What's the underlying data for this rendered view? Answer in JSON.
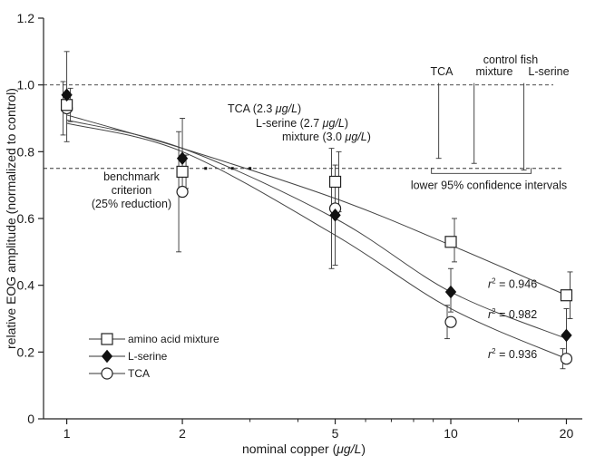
{
  "chart_data": {
    "type": "scatter",
    "xlabel_main": "nominal copper (",
    "xlabel_unit": "μg/L",
    "xlabel_close": ")",
    "ylabel": "relative EOG amplitude (normalized to control)",
    "x_scale": "log",
    "xlim": [
      0.87,
      22
    ],
    "ylim": [
      0,
      1.2
    ],
    "x_ticks": [
      1,
      2,
      5,
      10,
      20
    ],
    "x_tick_labels": [
      "1",
      "2",
      "5",
      "10",
      "20"
    ],
    "y_ticks": [
      0,
      0.2,
      0.4,
      0.6,
      0.8,
      1.0,
      1.2
    ],
    "y_tick_labels": [
      "0",
      "0.2",
      "0.4",
      "0.6",
      "0.8",
      "1.0",
      "1.2"
    ],
    "grid": false,
    "legend_position": "bottom-left",
    "series": [
      {
        "name": "amino acid mixture",
        "marker": "open-square",
        "x": [
          1,
          2,
          5,
          10,
          20
        ],
        "y": [
          0.94,
          0.74,
          0.71,
          0.53,
          0.37
        ],
        "err_low": [
          0.89,
          0.69,
          0.62,
          0.47,
          0.3
        ],
        "err_high": [
          0.99,
          0.79,
          0.8,
          0.6,
          0.44
        ],
        "fit_y": [
          0.91,
          0.81,
          0.66,
          0.52,
          0.37
        ],
        "r2_label": "r",
        "r2_value": " = 0.946"
      },
      {
        "name": "L-serine",
        "marker": "filled-diamond",
        "x": [
          1,
          2,
          5,
          10,
          20
        ],
        "y": [
          0.97,
          0.78,
          0.61,
          0.38,
          0.25
        ],
        "err_low": [
          0.83,
          0.68,
          0.46,
          0.32,
          0.19
        ],
        "err_high": [
          1.1,
          0.9,
          0.76,
          0.45,
          0.33
        ],
        "fit_y": [
          0.895,
          0.81,
          0.6,
          0.38,
          0.24
        ],
        "r2_label": "r",
        "r2_value": " = 0.982"
      },
      {
        "name": "TCA",
        "marker": "open-circle",
        "x": [
          1,
          2,
          5,
          10,
          20
        ],
        "y": [
          0.93,
          0.68,
          0.63,
          0.29,
          0.18
        ],
        "err_low": [
          0.85,
          0.5,
          0.45,
          0.24,
          0.15
        ],
        "err_high": [
          1.01,
          0.86,
          0.81,
          0.34,
          0.21
        ],
        "fit_y": [
          0.885,
          0.8,
          0.55,
          0.33,
          0.18
        ],
        "r2_label": "r",
        "r2_value": " = 0.936"
      }
    ],
    "control_level": 1.0,
    "benchmark_level": 0.75,
    "benchmark_text": [
      "benchmark",
      "criterion",
      "(25% reduction)"
    ],
    "ec_labels": [
      {
        "pre": "TCA (2.3 ",
        "unit": "μg/L",
        "post": ")",
        "x": 2.3
      },
      {
        "pre": "L-serine (2.7 ",
        "unit": "μg/L",
        "post": ")",
        "x": 2.7
      },
      {
        "pre": "mixture (3.0 ",
        "unit": "μg/L",
        "post": ")",
        "x": 3.0
      }
    ],
    "control_fish_title": "control fish",
    "control_columns": [
      {
        "label": "TCA",
        "x": 9.3,
        "lower": 0.78
      },
      {
        "label": "mixture",
        "x": 11.5,
        "lower": 0.765
      },
      {
        "label": "L-serine",
        "x": 15.5,
        "lower": 0.745
      }
    ],
    "confidence_label": "lower 95% confidence intervals"
  }
}
